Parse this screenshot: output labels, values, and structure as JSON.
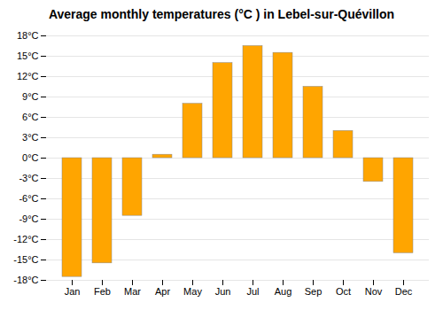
{
  "chart_data": {
    "type": "bar",
    "title": "Average monthly temperatures (°C ) in Lebel-sur-Quévillon",
    "categories": [
      "Jan",
      "Feb",
      "Mar",
      "Apr",
      "May",
      "Jun",
      "Jul",
      "Aug",
      "Sep",
      "Oct",
      "Nov",
      "Dec"
    ],
    "values": [
      -17.5,
      -15.5,
      -8.5,
      0.5,
      8.0,
      14.0,
      16.5,
      15.5,
      10.5,
      4.0,
      -3.5,
      -14.0
    ],
    "color": "#FFA500",
    "ylim": [
      -18,
      18
    ],
    "yticks": [
      {
        "value": -18,
        "label": "-18°C"
      },
      {
        "value": -15,
        "label": "-15°C"
      },
      {
        "value": -12,
        "label": "-12°C"
      },
      {
        "value": -9,
        "label": "-9°C"
      },
      {
        "value": -6,
        "label": "-6°C"
      },
      {
        "value": -3,
        "label": "-3°C"
      },
      {
        "value": 0,
        "label": "0°C"
      },
      {
        "value": 3,
        "label": "3°C"
      },
      {
        "value": 6,
        "label": "6°C"
      },
      {
        "value": 9,
        "label": "9°C"
      },
      {
        "value": 12,
        "label": "12°C"
      },
      {
        "value": 15,
        "label": "15°C"
      },
      {
        "value": 18,
        "label": "18°C"
      }
    ],
    "grid": true
  }
}
